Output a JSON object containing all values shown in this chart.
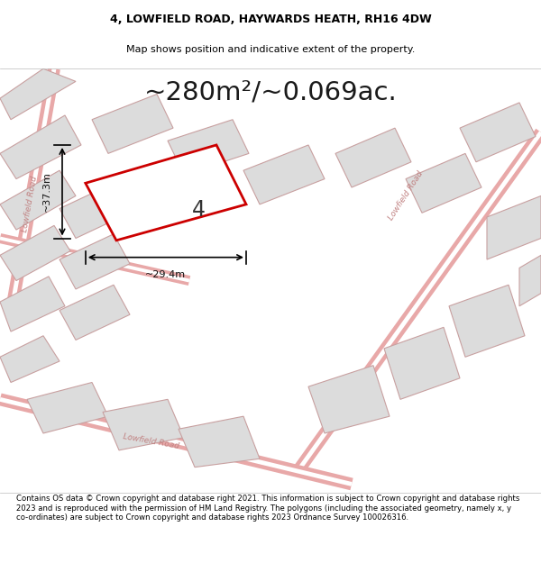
{
  "title_line1": "4, LOWFIELD ROAD, HAYWARDS HEATH, RH16 4DW",
  "title_line2": "Map shows position and indicative extent of the property.",
  "area_text": "~280m²/~0.069ac.",
  "dim_width": "~29.4m",
  "dim_height": "~37.3m",
  "plot_number": "4",
  "footer_text": "Contains OS data © Crown copyright and database right 2021. This information is subject to Crown copyright and database rights 2023 and is reproduced with the permission of HM Land Registry. The polygons (including the associated geometry, namely x, y co-ordinates) are subject to Crown copyright and database rights 2023 Ordnance Survey 100026316.",
  "bg_color": "#f0ecec",
  "map_bg": "#f0ecec",
  "road_color": "#e8a8a8",
  "building_fill": "#dcdcdc",
  "building_edge": "#c8a0a0",
  "highlight_fill": "#ffffff",
  "highlight_edge": "#cc0000",
  "road_label_color": "#c08080",
  "title_color": "#000000",
  "footer_color": "#000000",
  "white": "#ffffff"
}
